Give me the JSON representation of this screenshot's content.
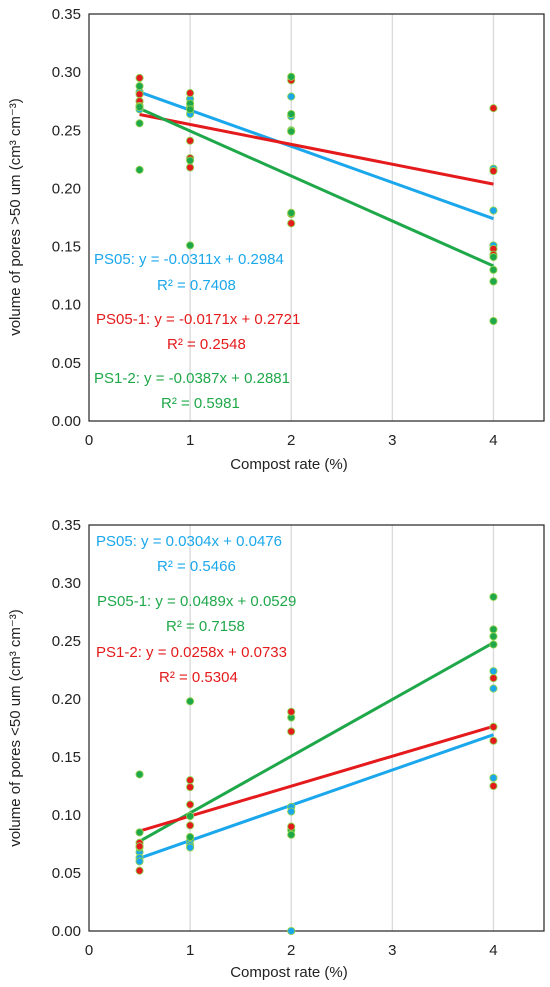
{
  "colors": {
    "PS05": "#1aa7ec",
    "PS05_1": "#e41a1c",
    "PS1_2": "#1fa84a",
    "grid": "#d9d9d9",
    "frame": "#222222"
  },
  "chart_data": [
    {
      "type": "scatter",
      "xlabel": "Compost rate (%)",
      "ylabel": "volume of pores >50 um (cm³ cm⁻³)",
      "xlim": [
        0,
        4.5
      ],
      "ylim": [
        0,
        0.35
      ],
      "xticks": [
        "0",
        "1",
        "2",
        "3",
        "4"
      ],
      "yticks": [
        "0.00",
        "0.05",
        "0.10",
        "0.15",
        "0.20",
        "0.25",
        "0.30",
        "0.35"
      ],
      "grid": true,
      "series": [
        {
          "name": "PS05",
          "color": "#1aa7ec",
          "x": [
            0.5,
            0.5,
            0.5,
            1,
            1,
            1,
            2,
            2,
            2,
            4,
            4,
            4
          ],
          "y": [
            0.283,
            0.275,
            0.268,
            0.277,
            0.27,
            0.264,
            0.279,
            0.262,
            0.25,
            0.217,
            0.181,
            0.151
          ],
          "trend": {
            "slope": -0.0311,
            "intercept": 0.2984
          },
          "equation": "PS05: y = -0.0311x + 0.2984",
          "r2": "R² = 0.7408"
        },
        {
          "name": "PS05-1",
          "color": "#e41a1c",
          "x": [
            0.5,
            0.5,
            0.5,
            0.5,
            1,
            1,
            1,
            1,
            2,
            2,
            2,
            4,
            4,
            4,
            4
          ],
          "y": [
            0.295,
            0.281,
            0.275,
            0.271,
            0.282,
            0.241,
            0.226,
            0.218,
            0.293,
            0.178,
            0.17,
            0.269,
            0.215,
            0.148,
            0.143
          ],
          "trend": {
            "slope": -0.0171,
            "intercept": 0.2721
          },
          "equation": "PS05-1: y = -0.0171x + 0.2721",
          "r2": "R² = 0.2548"
        },
        {
          "name": "PS1-2",
          "color": "#1fa84a",
          "x": [
            0.5,
            0.5,
            0.5,
            0.5,
            1,
            1,
            1,
            1,
            2,
            2,
            2,
            2,
            4,
            4,
            4,
            4
          ],
          "y": [
            0.288,
            0.27,
            0.256,
            0.216,
            0.273,
            0.268,
            0.224,
            0.151,
            0.296,
            0.264,
            0.249,
            0.179,
            0.141,
            0.13,
            0.12,
            0.086
          ],
          "trend": {
            "slope": -0.0387,
            "intercept": 0.2881
          },
          "equation": "PS1-2: y = -0.0387x + 0.2881",
          "r2": "R² = 0.5981"
        }
      ]
    },
    {
      "type": "scatter",
      "xlabel": "Compost rate (%)",
      "ylabel": "volume of pores <50 um (cm³ cm⁻³)",
      "xlim": [
        0,
        4.5
      ],
      "ylim": [
        0,
        0.35
      ],
      "xticks": [
        "0",
        "1",
        "2",
        "3",
        "4"
      ],
      "yticks": [
        "0.00",
        "0.05",
        "0.10",
        "0.15",
        "0.20",
        "0.25",
        "0.30",
        "0.35"
      ],
      "grid": true,
      "series": [
        {
          "name": "PS05",
          "color": "#1aa7ec",
          "x": [
            0.5,
            0.5,
            0.5,
            1,
            1,
            1,
            2,
            2,
            2,
            4,
            4,
            4
          ],
          "y": [
            0.068,
            0.063,
            0.06,
            0.078,
            0.074,
            0.072,
            0.107,
            0.103,
            0.0,
            0.224,
            0.209,
            0.132
          ],
          "trend": {
            "slope": 0.0304,
            "intercept": 0.0476
          },
          "equation": "PS05: y = 0.0304x + 0.0476",
          "r2": "R² = 0.5466"
        },
        {
          "name": "PS05-1",
          "color": "#1fa84a",
          "x": [
            0.5,
            0.5,
            0.5,
            1,
            1,
            1,
            2,
            2,
            2,
            4,
            4,
            4,
            4
          ],
          "y": [
            0.135,
            0.085,
            0.072,
            0.198,
            0.099,
            0.081,
            0.184,
            0.087,
            0.083,
            0.288,
            0.26,
            0.254,
            0.247
          ],
          "trend": {
            "slope": 0.0489,
            "intercept": 0.0529
          },
          "equation": "PS05-1: y = 0.0489x + 0.0529",
          "r2": "R² = 0.7158"
        },
        {
          "name": "PS1-2",
          "color": "#e41a1c",
          "x": [
            0.5,
            0.5,
            0.5,
            1,
            1,
            1,
            1,
            2,
            2,
            2,
            4,
            4,
            4,
            4
          ],
          "y": [
            0.076,
            0.073,
            0.052,
            0.13,
            0.124,
            0.109,
            0.091,
            0.189,
            0.172,
            0.09,
            0.218,
            0.176,
            0.164,
            0.125
          ],
          "trend": {
            "slope": 0.0258,
            "intercept": 0.0733
          },
          "equation": "PS1-2: y = 0.0258x + 0.0733",
          "r2": "R² = 0.5304"
        }
      ]
    }
  ]
}
